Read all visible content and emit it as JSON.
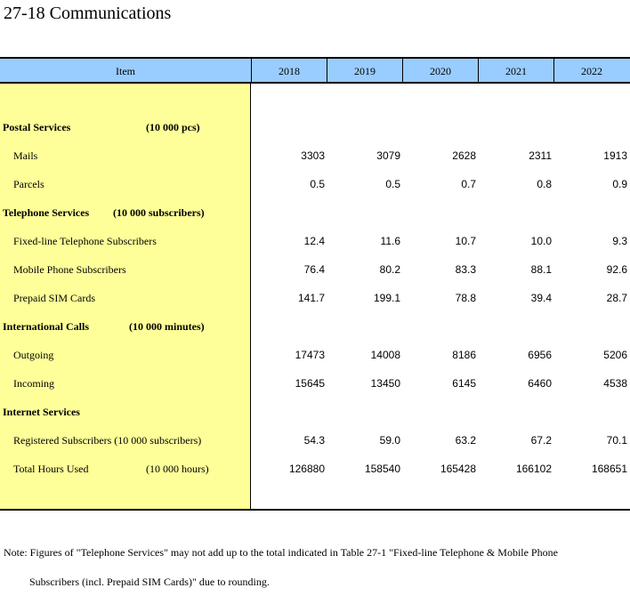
{
  "title": "27-18  Communications",
  "header": {
    "item": "Item",
    "years": [
      "2018",
      "2019",
      "2020",
      "2021",
      "2022"
    ]
  },
  "rows": [
    {
      "type": "section",
      "label": "Postal Services",
      "unit": "(10 000 pcs)"
    },
    {
      "type": "data",
      "label": "Mails",
      "unit": "",
      "values": [
        "3303",
        "3079",
        "2628",
        "2311",
        "1913"
      ]
    },
    {
      "type": "data",
      "label": "Parcels",
      "unit": "",
      "values": [
        "0.5",
        "0.5",
        "0.7",
        "0.8",
        "0.9"
      ]
    },
    {
      "type": "section",
      "label": "Telephone Services",
      "unit": "(10 000 subscribers)"
    },
    {
      "type": "data",
      "label": "Fixed-line Telephone Subscribers",
      "unit": "",
      "values": [
        "12.4",
        "11.6",
        "10.7",
        "10.0",
        "9.3"
      ]
    },
    {
      "type": "data",
      "label": "Mobile Phone Subscribers",
      "unit": "",
      "values": [
        "76.4",
        "80.2",
        "83.3",
        "88.1",
        "92.6"
      ]
    },
    {
      "type": "data",
      "label": "Prepaid SIM Cards",
      "unit": "",
      "values": [
        "141.7",
        "199.1",
        "78.8",
        "39.4",
        "28.7"
      ]
    },
    {
      "type": "section",
      "label": "International Calls",
      "unit": "(10 000 minutes)"
    },
    {
      "type": "data",
      "label": "Outgoing",
      "unit": "",
      "values": [
        "17473",
        "14008",
        "8186",
        "6956",
        "5206"
      ]
    },
    {
      "type": "data",
      "label": "Incoming",
      "unit": "",
      "values": [
        "15645",
        "13450",
        "6145",
        "6460",
        "4538"
      ]
    },
    {
      "type": "section",
      "label": "Internet Services",
      "unit": ""
    },
    {
      "type": "data",
      "label": "Registered Subscribers (10 000 subscribers)",
      "unit": "",
      "values": [
        "54.3",
        "59.0",
        "63.2",
        "67.2",
        "70.1"
      ]
    },
    {
      "type": "data",
      "label": "Total Hours Used",
      "unit": "(10 000 hours)",
      "values": [
        "126880",
        "158540",
        "165428",
        "166102",
        "168651"
      ]
    }
  ],
  "note": {
    "line1": "Note: Figures of \"Telephone Services\" may not add up to the total indicated in Table 27-1 \"Fixed-line Telephone & Mobile Phone",
    "line2": "Subscribers (incl. Prepaid SIM Cards)\" due to rounding."
  }
}
